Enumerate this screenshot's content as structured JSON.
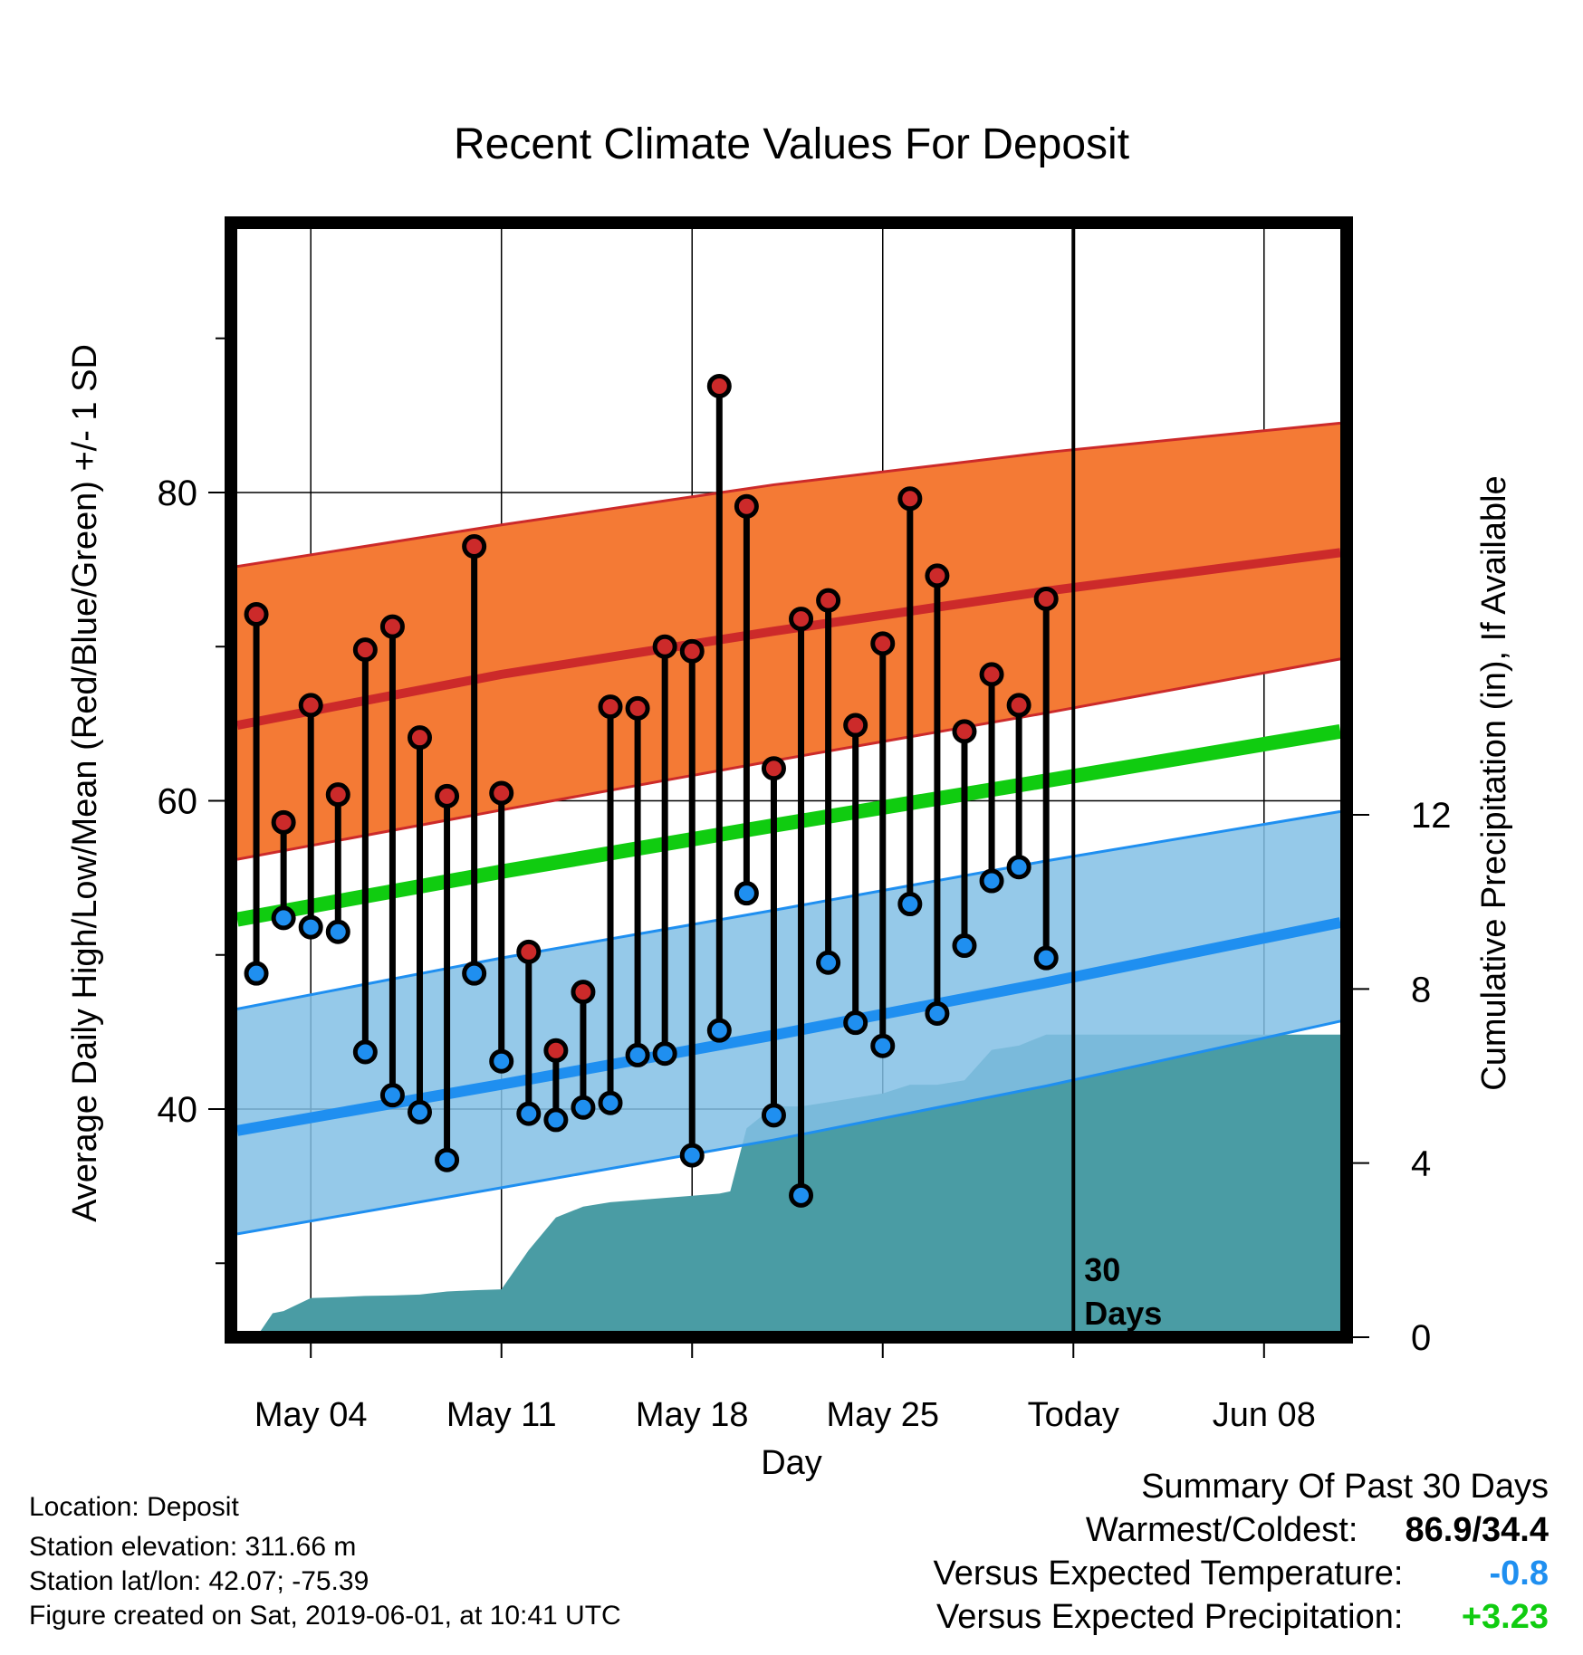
{
  "chart_data": {
    "type": "line",
    "title": "Recent Climate Values For Deposit",
    "xlabel": "Day",
    "ylabel_left": "Average Daily High/Low/Mean (Red/Blue/Green) +/- 1 SD",
    "ylabel_right": "Cumulative Precipitation (in), If Available",
    "x_tick_labels": [
      "May 04",
      "May 11",
      "May 18",
      "May 25",
      "Today",
      "Jun 08"
    ],
    "x_tick_day": [
      3,
      10,
      17,
      24,
      31,
      38
    ],
    "x_range_day": [
      0.3,
      40.8
    ],
    "today_day": 31,
    "today_label_lines": [
      "30",
      "Days"
    ],
    "y_left_ticks": [
      40,
      60,
      80
    ],
    "y_left_minor_ticks": [
      30,
      50,
      70,
      90
    ],
    "y_left_range": [
      25.2,
      97.5
    ],
    "y_right_ticks": [
      0,
      4,
      8,
      12
    ],
    "y_right_range": [
      0,
      25.6
    ],
    "colors": {
      "high": "#cc2a2a",
      "high_band": "#f47a35",
      "low": "#1f8ff0",
      "low_band": "#82bfe5",
      "mean": "#10cc10",
      "precip": "#4a9ca4",
      "high_dot": "#cc2a2a",
      "low_dot": "#1f8ff0"
    },
    "normal_high": {
      "day": [
        0.3,
        10,
        20,
        30,
        40.8
      ],
      "mean": [
        64.9,
        68.2,
        71.0,
        73.6,
        76.1
      ],
      "plus_sd": [
        75.2,
        77.9,
        80.5,
        82.6,
        84.5
      ],
      "minus_sd": [
        56.2,
        59.4,
        62.6,
        65.7,
        69.2
      ]
    },
    "normal_low": {
      "day": [
        0.3,
        10,
        20,
        30,
        40.8
      ],
      "mean": [
        38.6,
        41.6,
        44.8,
        48.2,
        52.1
      ],
      "plus_sd": [
        46.5,
        49.8,
        52.9,
        56.1,
        59.3
      ],
      "minus_sd": [
        31.9,
        34.9,
        38.0,
        41.5,
        45.7
      ]
    },
    "normal_mean": {
      "day": [
        0.3,
        10,
        20,
        30,
        40.8
      ],
      "values": [
        52.3,
        55.4,
        58.4,
        61.3,
        64.5
      ]
    },
    "observed": {
      "day": [
        1,
        2,
        3,
        4,
        5,
        6,
        7,
        8,
        9,
        10,
        11,
        12,
        13,
        14,
        15,
        16,
        17,
        18,
        19,
        20,
        21,
        22,
        23,
        24,
        25,
        26,
        27,
        28,
        29,
        30
      ],
      "high": [
        72.1,
        58.6,
        66.2,
        60.4,
        69.8,
        71.3,
        64.1,
        60.3,
        76.5,
        60.5,
        50.2,
        43.8,
        47.6,
        66.1,
        66.0,
        70.0,
        69.7,
        86.9,
        79.1,
        62.1,
        71.8,
        73.0,
        64.9,
        70.2,
        79.6,
        74.6,
        64.5,
        68.2,
        66.2,
        73.1
      ],
      "low": [
        48.8,
        52.4,
        51.8,
        51.5,
        43.7,
        40.9,
        39.8,
        36.7,
        48.8,
        43.1,
        39.7,
        39.3,
        40.1,
        40.4,
        43.5,
        43.6,
        37.0,
        45.1,
        54.0,
        39.6,
        34.4,
        49.5,
        45.6,
        44.1,
        53.3,
        46.2,
        50.6,
        54.8,
        55.7,
        49.8
      ]
    },
    "precip_cumulative": {
      "day": [
        1,
        1.6,
        2,
        3,
        4,
        5,
        6,
        7,
        8,
        9,
        10,
        11,
        12,
        13,
        14,
        15,
        16,
        17,
        18,
        18.4,
        19,
        20,
        21,
        22,
        23,
        24,
        25,
        26,
        27,
        28,
        29,
        30,
        40.8
      ],
      "values": [
        0,
        0.55,
        0.6,
        0.9,
        0.92,
        0.95,
        0.96,
        0.98,
        1.05,
        1.08,
        1.1,
        2.0,
        2.75,
        3.0,
        3.1,
        3.15,
        3.2,
        3.25,
        3.3,
        3.35,
        4.8,
        5.3,
        5.3,
        5.4,
        5.5,
        5.6,
        5.8,
        5.8,
        5.9,
        6.6,
        6.7,
        6.95,
        6.95
      ]
    }
  },
  "info": {
    "location": "Location: Deposit",
    "elevation": "Station elevation: 311.66 m",
    "latlon": "Station lat/lon: 42.07; -75.39",
    "created": "Figure created on Sat, 2019-06-01, at 10:41 UTC"
  },
  "summary": {
    "title": "Summary Of Past 30 Days",
    "warm_cold_label": "Warmest/Coldest:",
    "warm_cold_value": "86.9/34.4",
    "temp_label": "Versus Expected Temperature:",
    "temp_value": "-0.8",
    "temp_color": "#1f8ff0",
    "precip_label": "Versus Expected Precipitation:",
    "precip_value": "+3.23",
    "precip_color": "#10cc10"
  }
}
